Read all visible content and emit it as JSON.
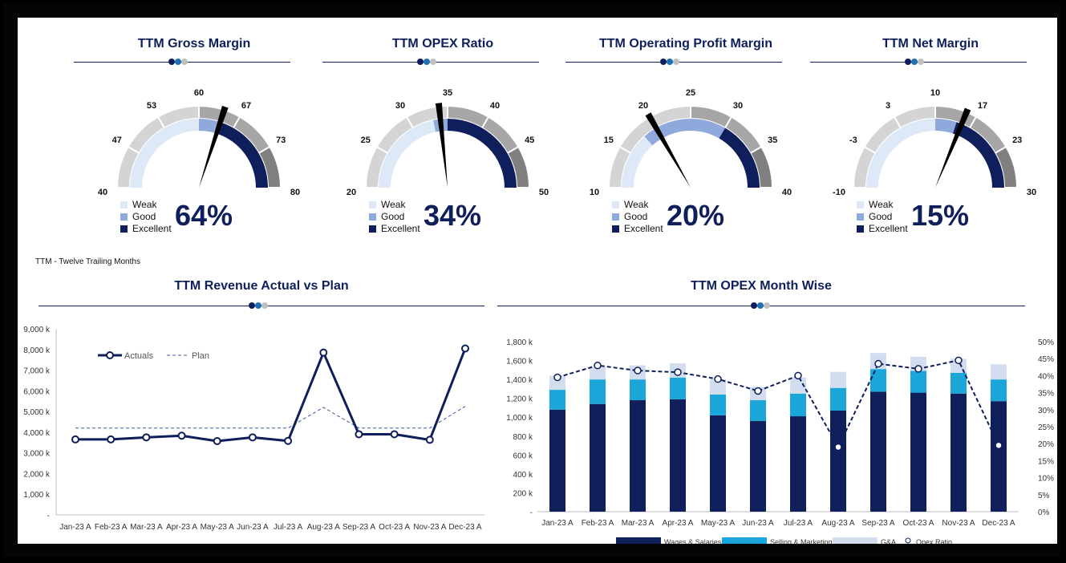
{
  "gauges": [
    {
      "title": "TTM Gross Margin",
      "value": 64,
      "value_label": "64%",
      "min": 40,
      "max": 80,
      "ticks": [
        "40",
        "47",
        "53",
        "60",
        "67",
        "73",
        "80"
      ],
      "zones": [
        60,
        64
      ]
    },
    {
      "title": "TTM OPEX Ratio",
      "value": 34,
      "value_label": "34%",
      "min": 20,
      "max": 50,
      "ticks": [
        "20",
        "25",
        "30",
        "35",
        "40",
        "45",
        "50"
      ],
      "zones": [
        33,
        35
      ]
    },
    {
      "title": "TTM Operating Profit Margin",
      "value": 20,
      "value_label": "20%",
      "min": 10,
      "max": 40,
      "ticks": [
        "10",
        "15",
        "20",
        "25",
        "30",
        "35",
        "40"
      ],
      "zones": [
        18,
        30
      ]
    },
    {
      "title": "TTM Net Margin",
      "value": 15,
      "value_label": "15%",
      "min": -10,
      "max": 30,
      "ticks": [
        "-10",
        "-3",
        "3",
        "10",
        "17",
        "23",
        "30"
      ],
      "zones": [
        10,
        14
      ]
    }
  ],
  "gauge_legend": [
    "Weak",
    "Good",
    "Excellent"
  ],
  "colors": {
    "navy": "#0e1f5b",
    "good": "#8fa9dd",
    "weak": "#dde9f7",
    "outer_light": "#d4d4d4",
    "outer_mid": "#a6a6a6",
    "outer_dark": "#808080",
    "cyan": "#1aa6d9",
    "pale": "#d2ddef",
    "dot_grey": "#bfbfbf",
    "dot_blue": "#1f6fb3"
  },
  "note": "TTM - Twelve Trailing Months",
  "revenue": {
    "title": "TTM Revenue Actual vs Plan",
    "chart_data": {
      "type": "line",
      "x": [
        "Jan-23 A",
        "Feb-23 A",
        "Mar-23 A",
        "Apr-23 A",
        "May-23 A",
        "Jun-23 A",
        "Jul-23 A",
        "Aug-23 A",
        "Sep-23 A",
        "Oct-23 A",
        "Nov-23 A",
        "Dec-23 A"
      ],
      "series": [
        {
          "name": "Actuals",
          "values": [
            3650,
            3650,
            3750,
            3830,
            3570,
            3750,
            3580,
            7850,
            3900,
            3900,
            3630,
            8050
          ]
        },
        {
          "name": "Plan",
          "values": [
            4200,
            4200,
            4200,
            4200,
            4200,
            4200,
            4200,
            5200,
            4200,
            4200,
            4200,
            5250
          ]
        }
      ],
      "yticks": [
        "-",
        "1,000 k",
        "2,000 k",
        "3,000 k",
        "4,000 k",
        "5,000 k",
        "6,000 k",
        "7,000 k",
        "8,000 k",
        "9,000 k"
      ],
      "ylim": [
        0,
        9000
      ]
    }
  },
  "opex": {
    "title": "TTM OPEX Month Wise",
    "chart_data": {
      "type": "bar",
      "categories": [
        "Jan-23 A",
        "Feb-23 A",
        "Mar-23 A",
        "Apr-23 A",
        "May-23 A",
        "Jun-23 A",
        "Jul-23 A",
        "Aug-23 A",
        "Sep-23 A",
        "Oct-23 A",
        "Nov-23 A",
        "Dec-23 A"
      ],
      "series": [
        {
          "name": "Wages & Salaries",
          "values": [
            1080,
            1140,
            1180,
            1190,
            1020,
            960,
            1010,
            1070,
            1270,
            1260,
            1250,
            1170
          ]
        },
        {
          "name": "Selling & Marketing",
          "values": [
            210,
            260,
            220,
            230,
            220,
            220,
            240,
            240,
            240,
            230,
            220,
            230
          ]
        },
        {
          "name": "G&A",
          "values": [
            150,
            130,
            150,
            150,
            160,
            140,
            170,
            170,
            170,
            150,
            150,
            160
          ]
        },
        {
          "name": "Opex Ratio",
          "values": [
            39.5,
            43,
            41.5,
            41,
            39,
            35.5,
            40,
            19,
            43.5,
            42,
            44.5,
            19.5
          ]
        }
      ],
      "yticks": [
        "-",
        "200 k",
        "400 k",
        "600 k",
        "800 k",
        "1,000 k",
        "1,200 k",
        "1,400 k",
        "1,600 k",
        "1,800 k"
      ],
      "y2ticks": [
        "0%",
        "5%",
        "10%",
        "15%",
        "20%",
        "25%",
        "30%",
        "35%",
        "40%",
        "45%",
        "50%"
      ],
      "ylim": [
        0,
        1800
      ],
      "y2lim": [
        0,
        50
      ]
    }
  }
}
